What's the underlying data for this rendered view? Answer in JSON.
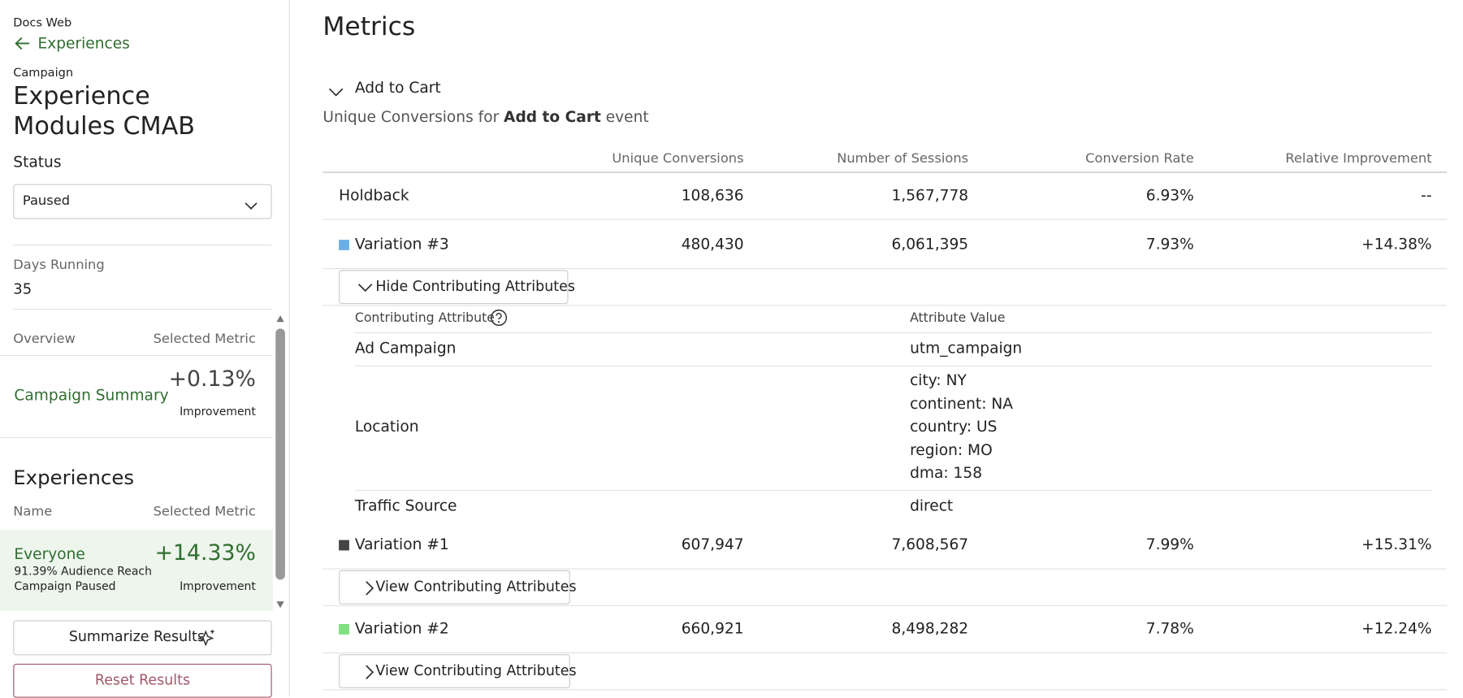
{
  "sidebar": {
    "app": "Docs Web",
    "back": "Experiences",
    "campaign_label": "Campaign",
    "campaign_name": [
      "Experience",
      "Modules CMAB"
    ],
    "status_label": "Status",
    "status": "Paused",
    "days_label": "Days Running",
    "days": "35",
    "overview_headers": [
      "Overview",
      "Selected Metric"
    ],
    "summary": {
      "name": "Campaign Summary",
      "value": "+0.13%",
      "sub": "Improvement"
    },
    "experiences_title": "Experiences",
    "experience_headers": [
      "Name",
      "Selected Metric"
    ],
    "experience": {
      "name": "Everyone",
      "reach": "91.39% Audience Reach",
      "state": "Campaign Paused",
      "value": "+14.33%",
      "sub": "Improvement"
    },
    "buttons": [
      "Summarize Results",
      "Reset Results"
    ]
  },
  "main": {
    "title": "Metrics",
    "metric": "Add to Cart",
    "description": [
      "Unique Conversions for",
      "Add to Cart",
      "event"
    ],
    "columns": [
      "Unique Conversions",
      "Number of Sessions",
      "Conversion Rate",
      "Relative Improvement"
    ],
    "rows": [
      {
        "name": "Holdback",
        "cells": [
          "108,636",
          "1,567,778",
          "6.93%",
          "--"
        ]
      },
      {
        "name": "Variation #3",
        "color": "#6aaee6",
        "cells": [
          "480,430",
          "6,061,395",
          "7.93%",
          "+14.38%"
        ],
        "toggle": "Hide Contributing Attributes",
        "attributes": {
          "headers": [
            "Contributing Attribute",
            "Attribute Value"
          ],
          "rows": [
            {
              "name": "Ad Campaign",
              "values": [
                "utm_campaign"
              ]
            },
            {
              "name": "Location",
              "values": [
                "city: NY",
                "continent: NA",
                "country: US",
                "region: MO",
                "dma: 158"
              ]
            },
            {
              "name": "Traffic Source",
              "values": [
                "direct"
              ]
            }
          ]
        }
      },
      {
        "name": "Variation #1",
        "color": "#444444",
        "cells": [
          "607,947",
          "7,608,567",
          "7.99%",
          "+15.31%"
        ],
        "toggle": "View Contributing Attributes"
      },
      {
        "name": "Variation #2",
        "color": "#7ee07e",
        "cells": [
          "660,921",
          "8,498,282",
          "7.78%",
          "+12.24%"
        ],
        "toggle": "View Contributing Attributes"
      }
    ]
  }
}
